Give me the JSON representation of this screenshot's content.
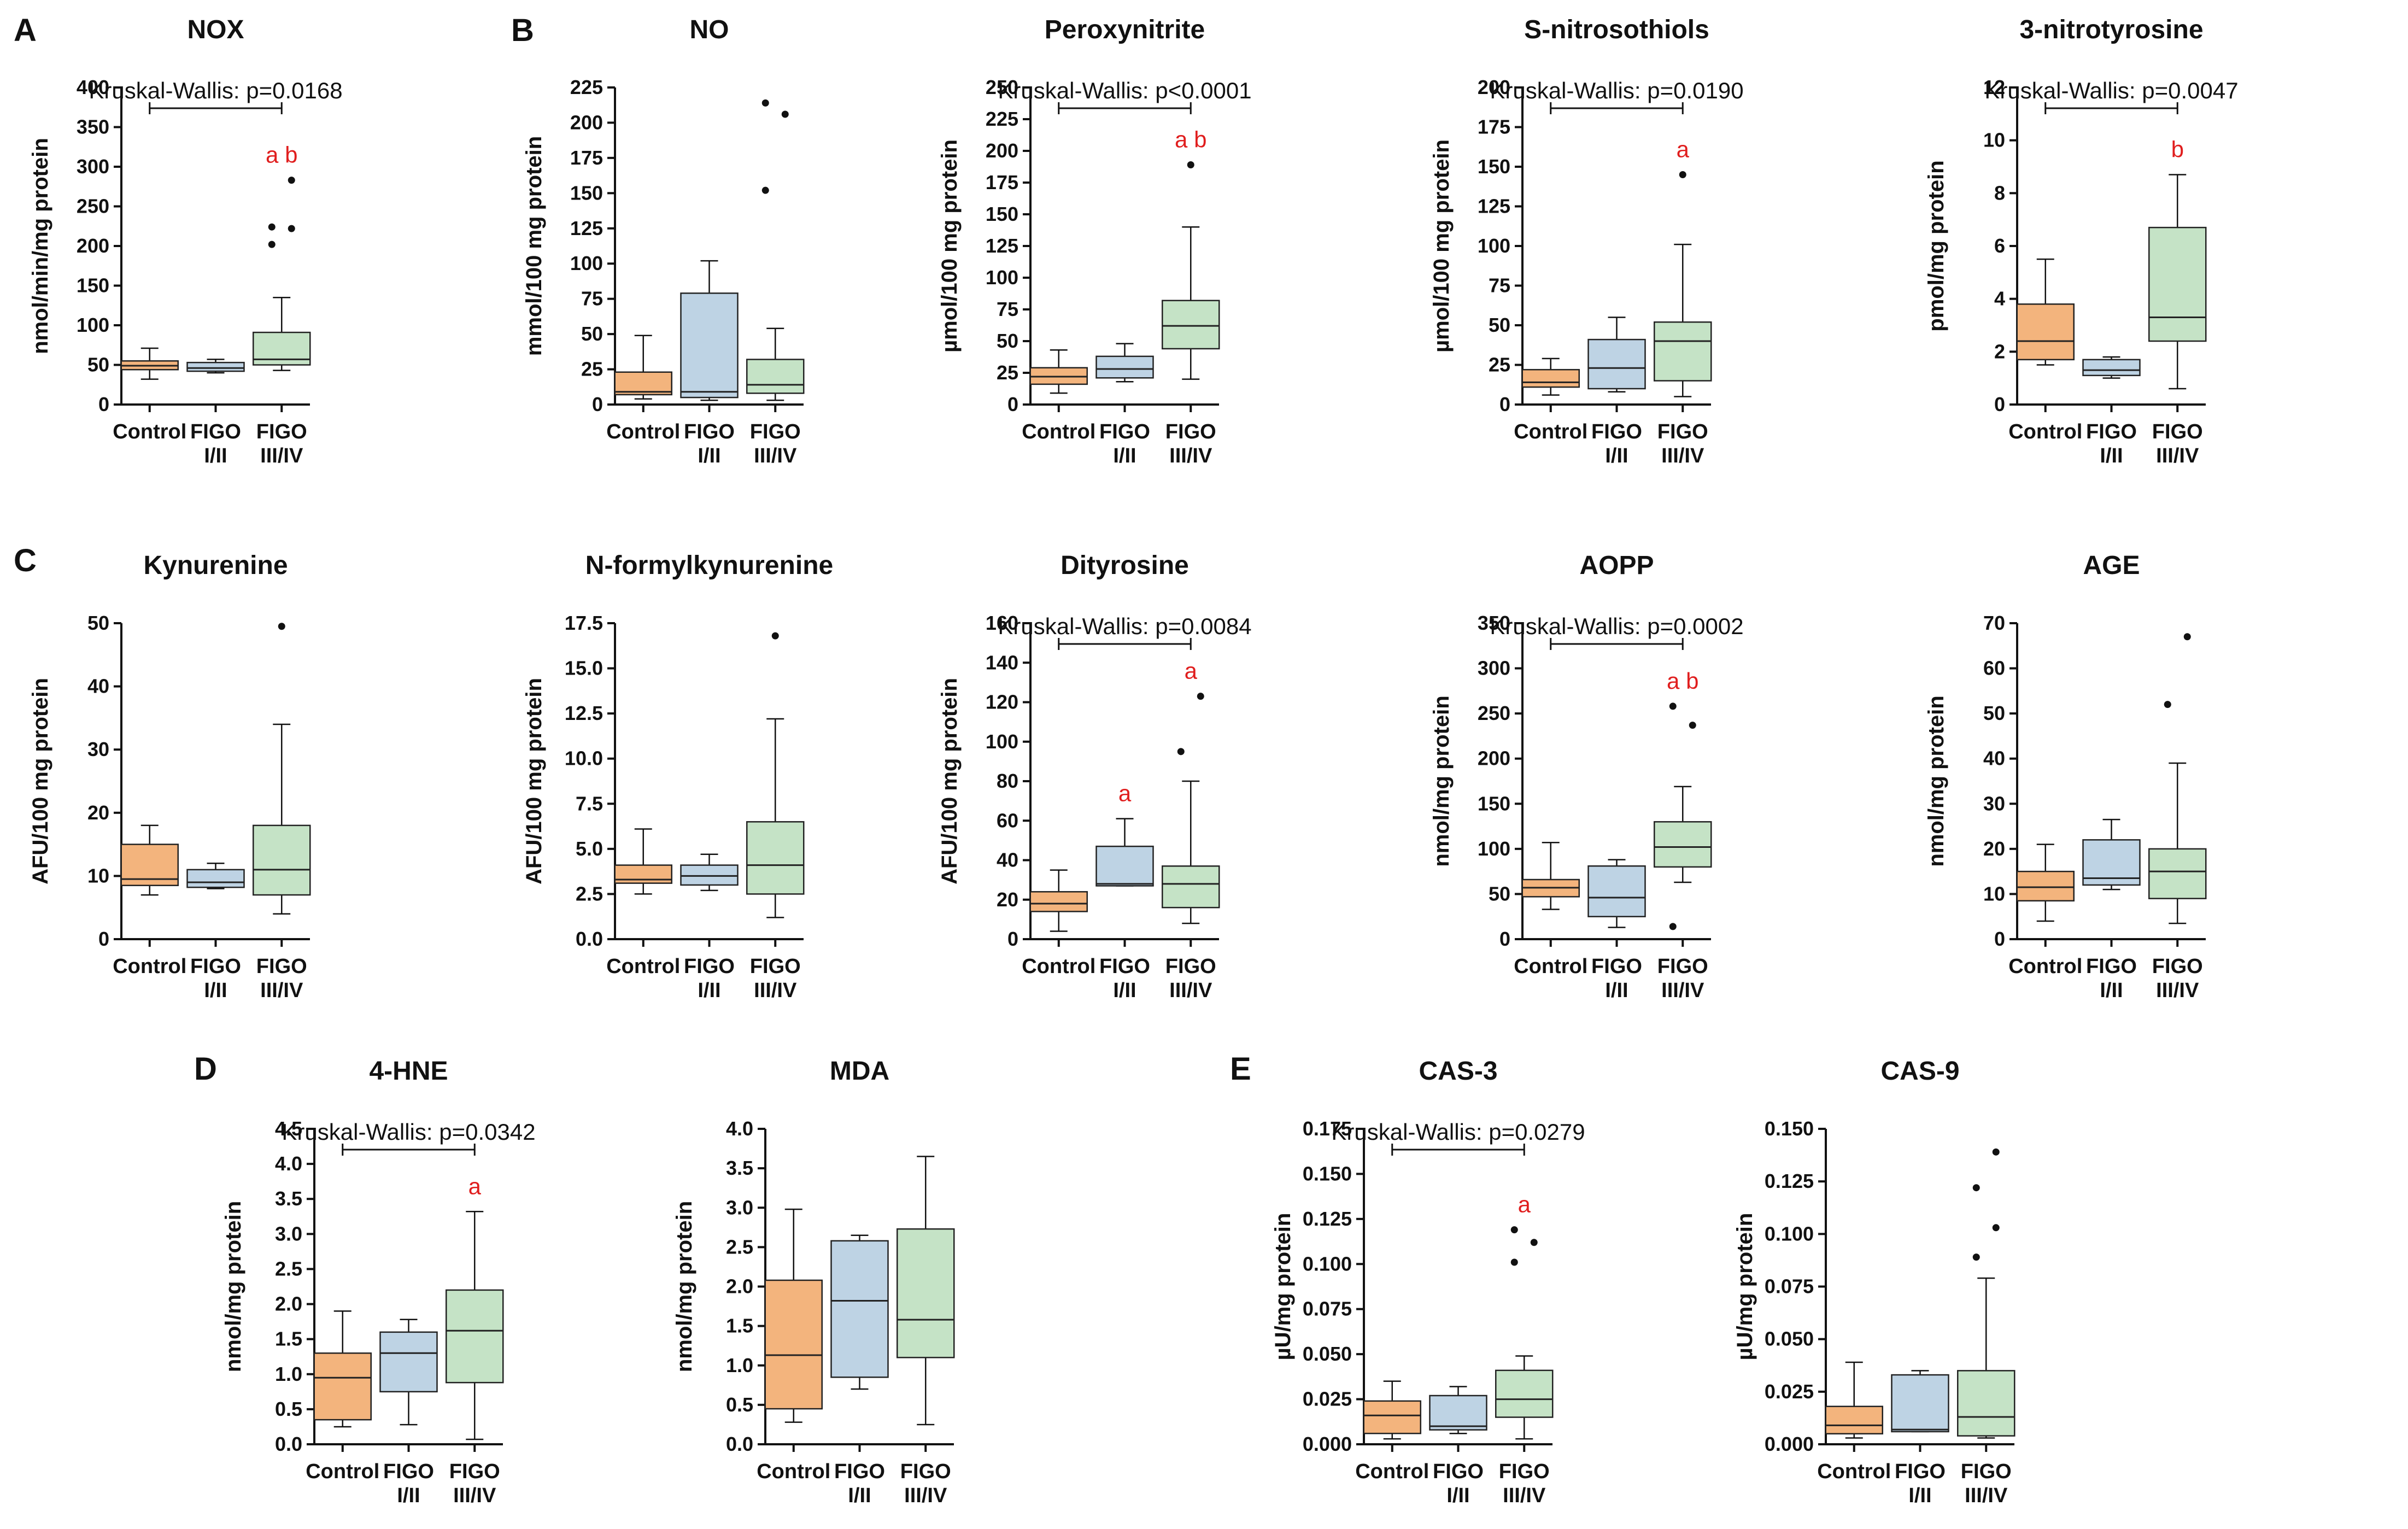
{
  "colors": {
    "Control": "#f3b47d",
    "FIGO I/II": "#bed3e4",
    "FIGO III/IV": "#c5e3c6",
    "significance": "#e01e1e",
    "ink": "#111111"
  },
  "panel_labels": [
    "A",
    "B",
    "C",
    "D",
    "E"
  ],
  "chart_data": [
    {
      "id": "nox",
      "type": "boxplot",
      "panel_label": "A",
      "title": "NOX",
      "ylabel": "nmol/min/mg protein",
      "ylim": [
        0,
        400
      ],
      "yticks": [
        0,
        50,
        100,
        150,
        200,
        250,
        300,
        350,
        400
      ],
      "ytick_labels": [
        "0",
        "50",
        "100",
        "150",
        "200",
        "250",
        "300",
        "350",
        "400"
      ],
      "categories": [
        "Control",
        "FIGO I/II",
        "FIGO III/IV"
      ],
      "boxes": [
        {
          "min": 32,
          "q1": 44,
          "median": 49,
          "q3": 55,
          "max": 71,
          "outliers": []
        },
        {
          "min": 40,
          "q1": 42,
          "median": 46,
          "q3": 53,
          "max": 57,
          "outliers": []
        },
        {
          "min": 43,
          "q1": 50,
          "median": 57,
          "q3": 91,
          "max": 135,
          "outliers": [
            202,
            222,
            224,
            283
          ]
        }
      ],
      "kruskal_wallis": "Kruskal-Wallis: p=0.0168",
      "significance": [
        "",
        "",
        "a b"
      ]
    },
    {
      "id": "no",
      "type": "boxplot",
      "panel_label": "B",
      "title": "NO",
      "ylabel": "mmol/100 mg protein",
      "ylim": [
        0,
        225
      ],
      "yticks": [
        0,
        25,
        50,
        75,
        100,
        125,
        150,
        175,
        200,
        225
      ],
      "ytick_labels": [
        "0",
        "25",
        "50",
        "75",
        "100",
        "125",
        "150",
        "175",
        "200",
        "225"
      ],
      "categories": [
        "Control",
        "FIGO I/II",
        "FIGO III/IV"
      ],
      "boxes": [
        {
          "min": 4,
          "q1": 7,
          "median": 9,
          "q3": 23,
          "max": 49,
          "outliers": []
        },
        {
          "min": 3,
          "q1": 5,
          "median": 9,
          "q3": 79,
          "max": 102,
          "outliers": []
        },
        {
          "min": 3,
          "q1": 8,
          "median": 14,
          "q3": 32,
          "max": 54,
          "outliers": [
            152,
            206,
            214
          ]
        }
      ],
      "kruskal_wallis": "",
      "significance": [
        "",
        "",
        ""
      ]
    },
    {
      "id": "peroxynitrite",
      "type": "boxplot",
      "panel_label": "",
      "title": "Peroxynitrite",
      "ylabel": "µmol/100 mg protein",
      "ylim": [
        0,
        250
      ],
      "yticks": [
        0,
        25,
        50,
        75,
        100,
        125,
        150,
        175,
        200,
        225,
        250
      ],
      "ytick_labels": [
        "0",
        "25",
        "50",
        "75",
        "100",
        "125",
        "150",
        "175",
        "200",
        "225",
        "250"
      ],
      "categories": [
        "Control",
        "FIGO I/II",
        "FIGO III/IV"
      ],
      "boxes": [
        {
          "min": 9,
          "q1": 16,
          "median": 22,
          "q3": 29,
          "max": 43,
          "outliers": []
        },
        {
          "min": 18,
          "q1": 21,
          "median": 28,
          "q3": 38,
          "max": 48,
          "outliers": []
        },
        {
          "min": 20,
          "q1": 44,
          "median": 62,
          "q3": 82,
          "max": 140,
          "outliers": [
            189
          ]
        }
      ],
      "kruskal_wallis": "Kruskal-Wallis: p<0.0001",
      "significance": [
        "",
        "",
        "a b"
      ]
    },
    {
      "id": "s-nitrosothiols",
      "type": "boxplot",
      "panel_label": "",
      "title": "S-nitrosothiols",
      "ylabel": "µmol/100 mg protein",
      "ylim": [
        0,
        200
      ],
      "yticks": [
        0,
        25,
        50,
        75,
        100,
        125,
        150,
        175,
        200
      ],
      "ytick_labels": [
        "0",
        "25",
        "50",
        "75",
        "100",
        "125",
        "150",
        "175",
        "200"
      ],
      "categories": [
        "Control",
        "FIGO I/II",
        "FIGO III/IV"
      ],
      "boxes": [
        {
          "min": 6,
          "q1": 11,
          "median": 14,
          "q3": 22,
          "max": 29,
          "outliers": []
        },
        {
          "min": 8,
          "q1": 10,
          "median": 23,
          "q3": 41,
          "max": 55,
          "outliers": []
        },
        {
          "min": 5,
          "q1": 15,
          "median": 40,
          "q3": 52,
          "max": 101,
          "outliers": [
            145
          ]
        }
      ],
      "kruskal_wallis": "Kruskal-Wallis: p=0.0190",
      "significance": [
        "",
        "",
        "a"
      ]
    },
    {
      "id": "3-nitrotyrosine",
      "type": "boxplot",
      "panel_label": "",
      "title": "3-nitrotyrosine",
      "ylabel": "pmol/mg protein",
      "ylim": [
        0,
        12
      ],
      "yticks": [
        0,
        2,
        4,
        6,
        8,
        10,
        12
      ],
      "ytick_labels": [
        "0",
        "2",
        "4",
        "6",
        "8",
        "10",
        "12"
      ],
      "categories": [
        "Control",
        "FIGO I/II",
        "FIGO III/IV"
      ],
      "boxes": [
        {
          "min": 1.5,
          "q1": 1.7,
          "median": 2.4,
          "q3": 3.8,
          "max": 5.5,
          "outliers": []
        },
        {
          "min": 1.0,
          "q1": 1.1,
          "median": 1.3,
          "q3": 1.7,
          "max": 1.8,
          "outliers": []
        },
        {
          "min": 0.6,
          "q1": 2.4,
          "median": 3.3,
          "q3": 6.7,
          "max": 8.7,
          "outliers": []
        }
      ],
      "kruskal_wallis": "Kruskal-Wallis: p=0.0047",
      "significance": [
        "",
        "",
        "b"
      ]
    },
    {
      "id": "kynurenine",
      "type": "boxplot",
      "panel_label": "C",
      "title": "Kynurenine",
      "ylabel": "AFU/100 mg protein",
      "ylim": [
        0,
        50
      ],
      "yticks": [
        0,
        10,
        20,
        30,
        40,
        50
      ],
      "ytick_labels": [
        "0",
        "10",
        "20",
        "30",
        "40",
        "50"
      ],
      "categories": [
        "Control",
        "FIGO I/II",
        "FIGO III/IV"
      ],
      "boxes": [
        {
          "min": 7,
          "q1": 8.5,
          "median": 9.5,
          "q3": 15,
          "max": 18,
          "outliers": []
        },
        {
          "min": 8,
          "q1": 8.2,
          "median": 9,
          "q3": 11,
          "max": 12,
          "outliers": []
        },
        {
          "min": 4,
          "q1": 7,
          "median": 11,
          "q3": 18,
          "max": 34,
          "outliers": [
            49.5
          ]
        }
      ],
      "kruskal_wallis": "",
      "significance": [
        "",
        "",
        ""
      ]
    },
    {
      "id": "n-formylkynurenine",
      "type": "boxplot",
      "panel_label": "",
      "title": "N-formylkynurenine",
      "ylabel": "AFU/100 mg protein",
      "ylim": [
        0,
        17.5
      ],
      "yticks": [
        0,
        2.5,
        5,
        7.5,
        10,
        12.5,
        15,
        17.5
      ],
      "ytick_labels": [
        "0.0",
        "2.5",
        "5.0",
        "7.5",
        "10.0",
        "12.5",
        "15.0",
        "17.5"
      ],
      "categories": [
        "Control",
        "FIGO I/II",
        "FIGO III/IV"
      ],
      "boxes": [
        {
          "min": 2.5,
          "q1": 3.1,
          "median": 3.3,
          "q3": 4.1,
          "max": 6.1,
          "outliers": []
        },
        {
          "min": 2.7,
          "q1": 3.0,
          "median": 3.5,
          "q3": 4.1,
          "max": 4.7,
          "outliers": []
        },
        {
          "min": 1.2,
          "q1": 2.5,
          "median": 4.1,
          "q3": 6.5,
          "max": 12.2,
          "outliers": [
            16.8
          ]
        }
      ],
      "kruskal_wallis": "",
      "significance": [
        "",
        "",
        ""
      ]
    },
    {
      "id": "dityrosine",
      "type": "boxplot",
      "panel_label": "",
      "title": "Dityrosine",
      "ylabel": "AFU/100 mg protein",
      "ylim": [
        0,
        160
      ],
      "yticks": [
        0,
        20,
        40,
        60,
        80,
        100,
        120,
        140,
        160
      ],
      "ytick_labels": [
        "0",
        "20",
        "40",
        "60",
        "80",
        "100",
        "120",
        "140",
        "160"
      ],
      "categories": [
        "Control",
        "FIGO I/II",
        "FIGO III/IV"
      ],
      "boxes": [
        {
          "min": 4,
          "q1": 14,
          "median": 18,
          "q3": 24,
          "max": 35,
          "outliers": []
        },
        {
          "min": 27,
          "q1": 27,
          "median": 28,
          "q3": 47,
          "max": 61,
          "outliers": []
        },
        {
          "min": 8,
          "q1": 16,
          "median": 28,
          "q3": 37,
          "max": 80,
          "outliers": [
            95,
            123
          ]
        }
      ],
      "kruskal_wallis": "Kruskal-Wallis: p=0.0084",
      "significance": [
        "",
        "a",
        "a"
      ]
    },
    {
      "id": "aopp",
      "type": "boxplot",
      "panel_label": "",
      "title": "AOPP",
      "ylabel": "nmol/mg protein",
      "ylim": [
        0,
        350
      ],
      "yticks": [
        0,
        50,
        100,
        150,
        200,
        250,
        300,
        350
      ],
      "ytick_labels": [
        "0",
        "50",
        "100",
        "150",
        "200",
        "250",
        "300",
        "350"
      ],
      "categories": [
        "Control",
        "FIGO I/II",
        "FIGO III/IV"
      ],
      "boxes": [
        {
          "min": 33,
          "q1": 47,
          "median": 57,
          "q3": 66,
          "max": 107,
          "outliers": []
        },
        {
          "min": 13,
          "q1": 25,
          "median": 46,
          "q3": 81,
          "max": 88,
          "outliers": []
        },
        {
          "min": 63,
          "q1": 80,
          "median": 102,
          "q3": 130,
          "max": 169,
          "outliers": [
            14,
            237,
            258
          ]
        }
      ],
      "kruskal_wallis": "Kruskal-Wallis: p=0.0002",
      "significance": [
        "",
        "",
        "a b"
      ]
    },
    {
      "id": "age",
      "type": "boxplot",
      "panel_label": "",
      "title": "AGE",
      "ylabel": "nmol/mg protein",
      "ylim": [
        0,
        70
      ],
      "yticks": [
        0,
        10,
        20,
        30,
        40,
        50,
        60,
        70
      ],
      "ytick_labels": [
        "0",
        "10",
        "20",
        "30",
        "40",
        "50",
        "60",
        "70"
      ],
      "categories": [
        "Control",
        "FIGO I/II",
        "FIGO III/IV"
      ],
      "boxes": [
        {
          "min": 4,
          "q1": 8.5,
          "median": 11.5,
          "q3": 15,
          "max": 21,
          "outliers": []
        },
        {
          "min": 11,
          "q1": 12,
          "median": 13.5,
          "q3": 22,
          "max": 26.5,
          "outliers": []
        },
        {
          "min": 3.5,
          "q1": 9,
          "median": 15,
          "q3": 20,
          "max": 39,
          "outliers": [
            52,
            67
          ]
        }
      ],
      "kruskal_wallis": "",
      "significance": [
        "",
        "",
        ""
      ]
    },
    {
      "id": "4-hne",
      "type": "boxplot",
      "panel_label": "D",
      "title": "4-HNE",
      "ylabel": "nmol/mg protein",
      "ylim": [
        0,
        4.5
      ],
      "yticks": [
        0,
        0.5,
        1,
        1.5,
        2,
        2.5,
        3,
        3.5,
        4,
        4.5
      ],
      "ytick_labels": [
        "0.0",
        "0.5",
        "1.0",
        "1.5",
        "2.0",
        "2.5",
        "3.0",
        "3.5",
        "4.0",
        "4.5"
      ],
      "categories": [
        "Control",
        "FIGO I/II",
        "FIGO III/IV"
      ],
      "boxes": [
        {
          "min": 0.25,
          "q1": 0.35,
          "median": 0.95,
          "q3": 1.3,
          "max": 1.9,
          "outliers": []
        },
        {
          "min": 0.28,
          "q1": 0.75,
          "median": 1.3,
          "q3": 1.6,
          "max": 1.78,
          "outliers": []
        },
        {
          "min": 0.07,
          "q1": 0.88,
          "median": 1.62,
          "q3": 2.2,
          "max": 3.32,
          "outliers": []
        }
      ],
      "kruskal_wallis": "Kruskal-Wallis: p=0.0342",
      "significance": [
        "",
        "",
        "a"
      ]
    },
    {
      "id": "mda",
      "type": "boxplot",
      "panel_label": "",
      "title": "MDA",
      "ylabel": "nmol/mg protein",
      "ylim": [
        0,
        4
      ],
      "yticks": [
        0,
        0.5,
        1,
        1.5,
        2,
        2.5,
        3,
        3.5,
        4
      ],
      "ytick_labels": [
        "0.0",
        "0.5",
        "1.0",
        "1.5",
        "2.0",
        "2.5",
        "3.0",
        "3.5",
        "4.0"
      ],
      "categories": [
        "Control",
        "FIGO I/II",
        "FIGO III/IV"
      ],
      "boxes": [
        {
          "min": 0.28,
          "q1": 0.45,
          "median": 1.13,
          "q3": 2.08,
          "max": 2.98,
          "outliers": []
        },
        {
          "min": 0.7,
          "q1": 0.85,
          "median": 1.82,
          "q3": 2.58,
          "max": 2.65,
          "outliers": []
        },
        {
          "min": 0.25,
          "q1": 1.1,
          "median": 1.58,
          "q3": 2.73,
          "max": 3.65,
          "outliers": []
        }
      ],
      "kruskal_wallis": "",
      "significance": [
        "",
        "",
        ""
      ]
    },
    {
      "id": "cas-3",
      "type": "boxplot",
      "panel_label": "E",
      "title": "CAS-3",
      "ylabel": "µU/mg protein",
      "ylim": [
        0,
        0.175
      ],
      "yticks": [
        0,
        0.025,
        0.05,
        0.075,
        0.1,
        0.125,
        0.15,
        0.175
      ],
      "ytick_labels": [
        "0.000",
        "0.025",
        "0.050",
        "0.075",
        "0.100",
        "0.125",
        "0.150",
        "0.175"
      ],
      "categories": [
        "Control",
        "FIGO I/II",
        "FIGO III/IV"
      ],
      "boxes": [
        {
          "min": 0.003,
          "q1": 0.006,
          "median": 0.016,
          "q3": 0.024,
          "max": 0.035,
          "outliers": []
        },
        {
          "min": 0.006,
          "q1": 0.008,
          "median": 0.01,
          "q3": 0.027,
          "max": 0.032,
          "outliers": []
        },
        {
          "min": 0.003,
          "q1": 0.015,
          "median": 0.025,
          "q3": 0.041,
          "max": 0.049,
          "outliers": [
            0.101,
            0.112,
            0.119
          ]
        }
      ],
      "kruskal_wallis": "Kruskal-Wallis: p=0.0279",
      "significance": [
        "",
        "",
        "a"
      ]
    },
    {
      "id": "cas-9",
      "type": "boxplot",
      "panel_label": "",
      "title": "CAS-9",
      "ylabel": "µU/mg protein",
      "ylim": [
        0,
        0.15
      ],
      "yticks": [
        0,
        0.025,
        0.05,
        0.075,
        0.1,
        0.125,
        0.15
      ],
      "ytick_labels": [
        "0.000",
        "0.025",
        "0.050",
        "0.075",
        "0.100",
        "0.125",
        "0.150"
      ],
      "categories": [
        "Control",
        "FIGO I/II",
        "FIGO III/IV"
      ],
      "boxes": [
        {
          "min": 0.003,
          "q1": 0.005,
          "median": 0.009,
          "q3": 0.018,
          "max": 0.039,
          "outliers": []
        },
        {
          "min": 0.006,
          "q1": 0.006,
          "median": 0.007,
          "q3": 0.033,
          "max": 0.035,
          "outliers": []
        },
        {
          "min": 0.003,
          "q1": 0.004,
          "median": 0.013,
          "q3": 0.035,
          "max": 0.079,
          "outliers": [
            0.089,
            0.103,
            0.122,
            0.139
          ]
        }
      ],
      "kruskal_wallis": "",
      "significance": [
        "",
        "",
        ""
      ]
    }
  ]
}
